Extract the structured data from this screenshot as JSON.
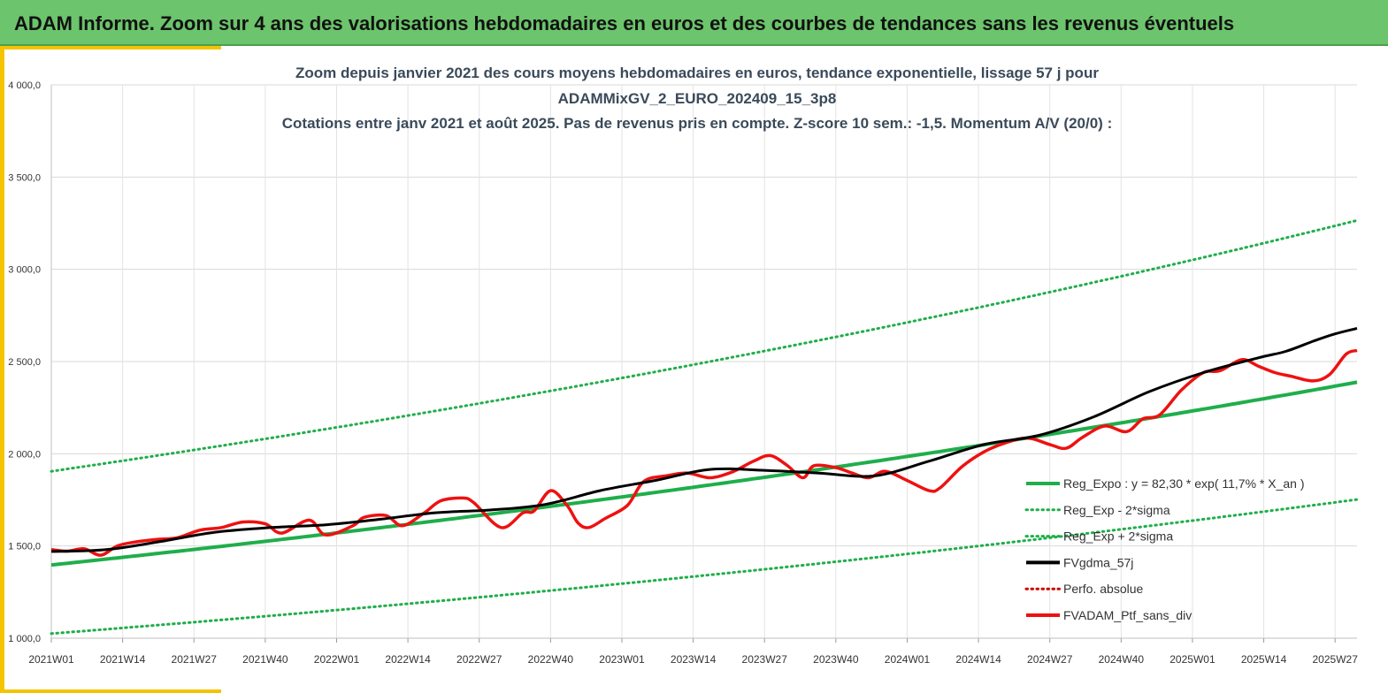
{
  "banner": {
    "title": "ADAM Informe. Zoom sur 4 ans des valorisations hebdomadaires en euros et des courbes de tendances sans les revenus éventuels"
  },
  "colors": {
    "banner_bg": "#6cc46c",
    "accent": "#f5c400",
    "green": "#1fae4b",
    "black": "#000000",
    "red": "#ee1111",
    "dark_red": "#cc0000"
  },
  "chart_data": {
    "type": "line",
    "title_lines": [
      "Zoom depuis janvier 2021 des cours moyens hebdomadaires  en euros, tendance exponentielle, lissage 57 j pour",
      "ADAMMixGV_2_EURO_202409_15_3p8",
      "Cotations  entre janv 2021 et août 2025. Pas de revenus pris en compte. Z-score 10 sem.: -1,5. Momentum A/V (20/0) :"
    ],
    "x_ticks": [
      "2021W01",
      "2021W14",
      "2021W27",
      "2021W40",
      "2022W01",
      "2022W14",
      "2022W27",
      "2022W40",
      "2023W01",
      "2023W14",
      "2023W27",
      "2023W40",
      "2024W01",
      "2024W14",
      "2024W27",
      "2024W40",
      "2025W01",
      "2025W14",
      "2025W27"
    ],
    "x_tick_index": [
      0,
      13,
      26,
      39,
      52,
      65,
      78,
      91,
      104,
      117,
      130,
      143,
      156,
      169,
      182,
      195,
      208,
      221,
      234
    ],
    "y_ticks": [
      1000,
      1500,
      2000,
      2500,
      3000,
      3500,
      4000
    ],
    "y_tick_labels": [
      "1 000,0",
      "1 500,0",
      "2 000,0",
      "2 500,0",
      "3 000,0",
      "3 500,0",
      "4 000,0"
    ],
    "ylim": [
      1000,
      4000
    ],
    "x_count": 239,
    "grid": true,
    "legend_position": "right",
    "series": [
      {
        "name": "Reg_Expo : y = 82,30 * exp( 11,7% *  X_an )",
        "style": "solid",
        "color": "#1fae4b",
        "start": 1397,
        "end": 2388
      },
      {
        "name": "Reg_Exp - 2*sigma",
        "style": "dotted",
        "color": "#1fae4b",
        "start": 1025,
        "end": 1752
      },
      {
        "name": "Reg_Exp + 2*sigma",
        "style": "dotted",
        "color": "#1fae4b",
        "start": 1905,
        "end": 3265
      },
      {
        "name": "FVgdma_57j",
        "style": "solid",
        "color": "#000000",
        "points": [
          [
            0,
            1470
          ],
          [
            10,
            1480
          ],
          [
            20,
            1525
          ],
          [
            30,
            1575
          ],
          [
            40,
            1600
          ],
          [
            50,
            1615
          ],
          [
            60,
            1645
          ],
          [
            70,
            1680
          ],
          [
            80,
            1695
          ],
          [
            90,
            1725
          ],
          [
            100,
            1800
          ],
          [
            110,
            1855
          ],
          [
            120,
            1915
          ],
          [
            130,
            1910
          ],
          [
            140,
            1895
          ],
          [
            150,
            1880
          ],
          [
            160,
            1960
          ],
          [
            170,
            2050
          ],
          [
            180,
            2100
          ],
          [
            190,
            2200
          ],
          [
            200,
            2335
          ],
          [
            210,
            2440
          ],
          [
            220,
            2520
          ],
          [
            225,
            2555
          ],
          [
            230,
            2610
          ],
          [
            234,
            2650
          ],
          [
            238,
            2680
          ]
        ]
      },
      {
        "name": "Perfo. absolue",
        "style": "dotted",
        "color": "#cc0000"
      },
      {
        "name": "FVADAM_Ptf_sans_div",
        "style": "solid",
        "color": "#ee1111",
        "points": [
          [
            0,
            1480
          ],
          [
            3,
            1472
          ],
          [
            6,
            1485
          ],
          [
            9,
            1450
          ],
          [
            12,
            1500
          ],
          [
            15,
            1520
          ],
          [
            19,
            1535
          ],
          [
            23,
            1545
          ],
          [
            27,
            1585
          ],
          [
            31,
            1600
          ],
          [
            35,
            1630
          ],
          [
            39,
            1620
          ],
          [
            42,
            1570
          ],
          [
            47,
            1640
          ],
          [
            50,
            1560
          ],
          [
            55,
            1610
          ],
          [
            57,
            1655
          ],
          [
            61,
            1665
          ],
          [
            64,
            1610
          ],
          [
            68,
            1680
          ],
          [
            71,
            1745
          ],
          [
            75,
            1760
          ],
          [
            77,
            1735
          ],
          [
            82,
            1600
          ],
          [
            86,
            1680
          ],
          [
            88,
            1690
          ],
          [
            91,
            1800
          ],
          [
            94,
            1720
          ],
          [
            96,
            1625
          ],
          [
            98,
            1600
          ],
          [
            101,
            1650
          ],
          [
            105,
            1720
          ],
          [
            108,
            1850
          ],
          [
            112,
            1880
          ],
          [
            116,
            1895
          ],
          [
            120,
            1870
          ],
          [
            124,
            1900
          ],
          [
            128,
            1960
          ],
          [
            131,
            1990
          ],
          [
            134,
            1940
          ],
          [
            137,
            1870
          ],
          [
            139,
            1935
          ],
          [
            143,
            1925
          ],
          [
            146,
            1895
          ],
          [
            149,
            1870
          ],
          [
            152,
            1905
          ],
          [
            156,
            1855
          ],
          [
            160,
            1800
          ],
          [
            162,
            1815
          ],
          [
            166,
            1930
          ],
          [
            170,
            2010
          ],
          [
            174,
            2060
          ],
          [
            178,
            2085
          ],
          [
            182,
            2050
          ],
          [
            185,
            2030
          ],
          [
            188,
            2090
          ],
          [
            192,
            2150
          ],
          [
            196,
            2120
          ],
          [
            199,
            2190
          ],
          [
            202,
            2210
          ],
          [
            206,
            2345
          ],
          [
            210,
            2440
          ],
          [
            213,
            2450
          ],
          [
            217,
            2510
          ],
          [
            220,
            2475
          ],
          [
            223,
            2440
          ],
          [
            226,
            2420
          ],
          [
            230,
            2395
          ],
          [
            233,
            2430
          ],
          [
            236,
            2540
          ],
          [
            238,
            2560
          ]
        ]
      }
    ]
  }
}
